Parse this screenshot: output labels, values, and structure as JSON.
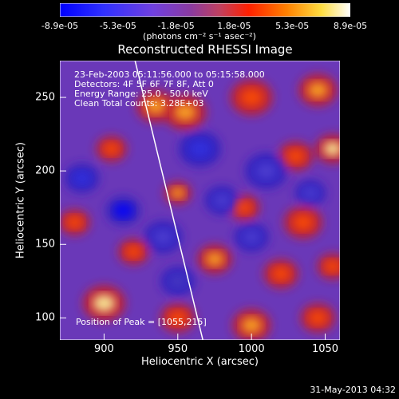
{
  "chart_data": {
    "type": "heatmap",
    "title": "Reconstructed RHESSI Image",
    "xlabel": "Heliocentric X (arcsec)",
    "ylabel": "Heliocentric Y (arcsec)",
    "xlim": [
      870,
      1060
    ],
    "ylim": [
      85,
      275
    ],
    "xticks": [
      "900",
      "950",
      "1000",
      "1050"
    ],
    "yticks": [
      "100",
      "150",
      "200",
      "250"
    ],
    "colorbar": {
      "ticks": [
        "-8.9e-05",
        "-5.3e-05",
        "-1.8e-05",
        "1.8e-05",
        "5.3e-05",
        "8.9e-05"
      ],
      "range": [
        -8.9e-05,
        8.9e-05
      ],
      "units_text": "(photons cm⁻² s⁻¹ asec⁻²)"
    },
    "annotations": [
      "23-Feb-2003 05:11:56.000 to 05:15:58.000",
      "Detectors: 4F 5F 6F 7F 8F, Att 0",
      "Energy Range: 25.0 - 50.0 keV",
      "Clean     Total counts: 3.28E+03"
    ],
    "peak_text": "Position of Peak = [1055,215]",
    "peak": [
      1055,
      215
    ],
    "limb_line": [
      [
        921,
        275
      ],
      [
        967,
        85
      ]
    ],
    "blobs": [
      {
        "x": 935,
        "y": 244,
        "v": 0.9,
        "r": 10
      },
      {
        "x": 955,
        "y": 240,
        "v": 0.85,
        "r": 11
      },
      {
        "x": 1000,
        "y": 250,
        "v": 0.75,
        "r": 11
      },
      {
        "x": 1045,
        "y": 255,
        "v": 0.85,
        "r": 10
      },
      {
        "x": 1055,
        "y": 215,
        "v": 1.0,
        "r": 9
      },
      {
        "x": 905,
        "y": 215,
        "v": 0.75,
        "r": 8
      },
      {
        "x": 1030,
        "y": 210,
        "v": 0.7,
        "r": 9
      },
      {
        "x": 950,
        "y": 185,
        "v": 0.9,
        "r": 7
      },
      {
        "x": 995,
        "y": 175,
        "v": 0.75,
        "r": 8
      },
      {
        "x": 1035,
        "y": 165,
        "v": 0.8,
        "r": 10
      },
      {
        "x": 880,
        "y": 165,
        "v": 0.7,
        "r": 8
      },
      {
        "x": 920,
        "y": 145,
        "v": 0.7,
        "r": 8
      },
      {
        "x": 975,
        "y": 140,
        "v": 0.9,
        "r": 9
      },
      {
        "x": 1020,
        "y": 130,
        "v": 0.8,
        "r": 9
      },
      {
        "x": 1055,
        "y": 135,
        "v": 0.7,
        "r": 8
      },
      {
        "x": 900,
        "y": 110,
        "v": 0.95,
        "r": 11
      },
      {
        "x": 950,
        "y": 100,
        "v": 0.8,
        "r": 9
      },
      {
        "x": 1000,
        "y": 95,
        "v": 0.85,
        "r": 10
      },
      {
        "x": 1045,
        "y": 100,
        "v": 0.8,
        "r": 9
      },
      {
        "x": 913,
        "y": 173,
        "v": -1.0,
        "r": 9
      },
      {
        "x": 965,
        "y": 215,
        "v": -0.8,
        "r": 11
      },
      {
        "x": 1010,
        "y": 200,
        "v": -0.7,
        "r": 11
      },
      {
        "x": 980,
        "y": 180,
        "v": -0.7,
        "r": 9
      },
      {
        "x": 885,
        "y": 195,
        "v": -0.75,
        "r": 9
      },
      {
        "x": 940,
        "y": 155,
        "v": -0.6,
        "r": 10
      },
      {
        "x": 1000,
        "y": 155,
        "v": -0.6,
        "r": 9
      },
      {
        "x": 950,
        "y": 125,
        "v": -0.55,
        "r": 9
      },
      {
        "x": 1040,
        "y": 185,
        "v": -0.6,
        "r": 8
      }
    ],
    "grid": false
  },
  "footer_date": "31-May-2013 04:32",
  "colors": {
    "background": "#000000",
    "foreground": "#ffffff",
    "colorbar_stops": [
      "#0000ff",
      "#2030ff",
      "#6040ff",
      "#8040c0",
      "#c06060",
      "#ff4000",
      "#ff8000",
      "#ffff40",
      "#ffffff"
    ]
  }
}
